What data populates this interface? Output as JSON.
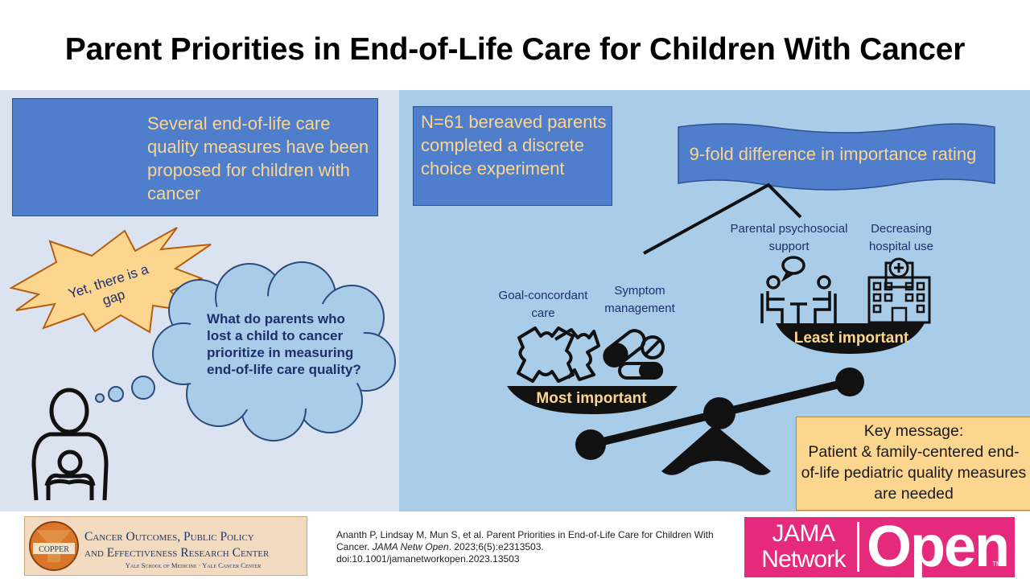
{
  "title": "Parent Priorities in End-of-Life Care for Children With Cancer",
  "left_panel": {
    "measures_text": "Several end-of-life care quality measures have been proposed for children with cancer",
    "gap_text": "Yet, there is a gap",
    "question_text": "What do parents who lost a child to cancer prioritize in measuring end-of-life care quality?"
  },
  "right_panel": {
    "n_text": "N=61 bereaved parents completed a discrete choice experiment",
    "banner_text": "9-fold difference in importance rating",
    "labels": {
      "goal_concordant": "Goal-concordant care",
      "symptom": "Symptom management",
      "parental": "Parental psychosocial support",
      "hospital": "Decreasing hospital use"
    },
    "most_important": "Most important",
    "least_important": "Least important",
    "key_message": {
      "heading": "Key message:",
      "body": "Patient & family-centered end-of-life pediatric quality measures are needed"
    }
  },
  "footer": {
    "copper": {
      "seal_text": "COPPER",
      "line1": "Cancer Outcomes, Public Policy",
      "line2": "and Effectiveness Research Center",
      "line3": "Yale School of Medicine · Yale Cancer Center"
    },
    "citation": {
      "authors": "Ananth P, Lindsay M, Mun S, et al. Parent Priorities in End-of-Life Care for Children With Cancer.",
      "journal": "JAMA Netw Open",
      "details": ". 2023;6(5):e2313503.",
      "doi": "doi:10.1001/jamanetworkopen.2023.13503"
    },
    "jama": {
      "jama": "JAMA",
      "network": "Network",
      "open": "Open",
      "tm": "TM"
    }
  },
  "colors": {
    "box_blue": "#4f7fcc",
    "text_gold": "#fcd58e",
    "left_bg": "#dae3ef",
    "right_bg": "#a9cce9",
    "jama_pink": "#e5297c"
  }
}
